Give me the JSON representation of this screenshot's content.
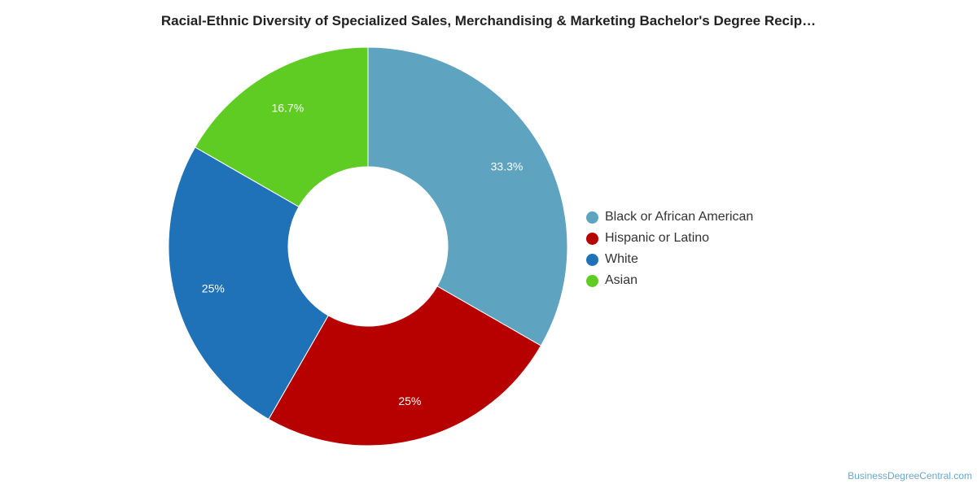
{
  "chart_data": {
    "type": "pie",
    "title": "Racial-Ethnic Diversity of Specialized Sales, Merchandising & Marketing Bachelor's Degree Recip…",
    "donut": true,
    "legend_position": "right",
    "slices": [
      {
        "name": "Black or African American",
        "value": 33.3,
        "label": "33.3%",
        "color": "#5ea3c0"
      },
      {
        "name": "Hispanic or Latino",
        "value": 25,
        "label": "25%",
        "color": "#b70000"
      },
      {
        "name": "White",
        "value": 25,
        "label": "25%",
        "color": "#1f72b8"
      },
      {
        "name": "Asian",
        "value": 16.7,
        "label": "16.7%",
        "color": "#5fcc23"
      }
    ]
  },
  "watermark": "BusinessDegreeCentral.com"
}
